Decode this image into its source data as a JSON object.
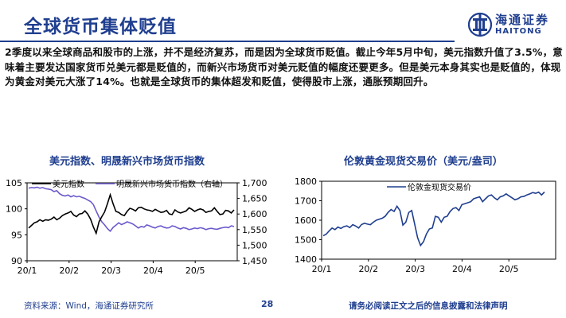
{
  "header": {
    "title": "全球货币集体贬值",
    "logo_cn": "海通证券",
    "logo_en": "HAITONG"
  },
  "body_text": "2季度以来全球商品和股市的上涨，并不是经济复苏，而是因为全球货币贬值。截止今年5月中旬，美元指数升值了3.5%，意味着主要发达国家货币兑美元都是贬值的，而新兴市场货币对美元贬值的幅度还要更多。但是美元本身其实也是贬值的，体现为黄金对美元大涨了14%。也就是全球货币的集体超发和贬值，使得股市上涨，通胀预期回升。",
  "colors": {
    "brand": "#1f3e8f",
    "series_black": "#000000",
    "series_purple": "#6a5acd",
    "series_navy": "#1f3e8f"
  },
  "chart_data": [
    {
      "type": "line",
      "title": "美元指数、明晟新兴市场货币指数",
      "x_ticks": [
        "20/1",
        "20/2",
        "20/3",
        "20/4",
        "20/5"
      ],
      "y_left_ticks": [
        "105",
        "100",
        "95",
        "90"
      ],
      "y_right_ticks": [
        "1,700",
        "1,650",
        "1,600",
        "1,550",
        "1,500",
        "1,450"
      ],
      "ylim_left": [
        90,
        105
      ],
      "ylim_right": [
        1450,
        1700
      ],
      "legend_position": "top",
      "series": [
        {
          "name": "美元指数",
          "axis": "left",
          "values": [
            96.3,
            96.8,
            97.3,
            97.5,
            97.9,
            97.6,
            97.9,
            97.8,
            98.0,
            98.4,
            97.9,
            98.2,
            98.7,
            99.0,
            99.2,
            99.5,
            98.8,
            98.5,
            99.0,
            99.1,
            99.6,
            99.0,
            98.0,
            96.5,
            95.3,
            97.5,
            98.5,
            99.4,
            101.0,
            102.7,
            101.0,
            99.5,
            99.3,
            98.9,
            98.7,
            99.5,
            100.1,
            99.9,
            99.6,
            100.2,
            100.3,
            100.0,
            99.8,
            99.7,
            99.5,
            99.9,
            99.6,
            99.3,
            99.4,
            99.7,
            99.0,
            98.9,
            99.8,
            99.4,
            99.2,
            99.4,
            99.6,
            100.2,
            99.9,
            99.5,
            99.8,
            100.0,
            99.8,
            99.3,
            99.5,
            99.6,
            100.2,
            99.5,
            98.9,
            99.0,
            99.7,
            99.6,
            99.2,
            99.8
          ]
        },
        {
          "name": "明晟新兴市场货币指数（右轴）",
          "axis": "right",
          "values": [
            1683,
            1685,
            1684,
            1686,
            1683,
            1685,
            1681,
            1680,
            1678,
            1672,
            1675,
            1665,
            1660,
            1658,
            1661,
            1655,
            1659,
            1655,
            1657,
            1653,
            1650,
            1645,
            1640,
            1630,
            1610,
            1590,
            1575,
            1565,
            1553,
            1545,
            1557,
            1564,
            1572,
            1566,
            1570,
            1575,
            1572,
            1568,
            1562,
            1555,
            1560,
            1558,
            1565,
            1562,
            1558,
            1555,
            1560,
            1562,
            1558,
            1555,
            1556,
            1562,
            1560,
            1555,
            1552,
            1556,
            1554,
            1550,
            1552,
            1555,
            1553,
            1556,
            1554,
            1550,
            1553,
            1554,
            1552,
            1551,
            1554,
            1556,
            1558,
            1556,
            1562,
            1560
          ]
        }
      ]
    },
    {
      "type": "line",
      "title": "伦敦黄金现货交易价（美元/盎司）",
      "x_ticks": [
        "20/1",
        "20/2",
        "20/3",
        "20/4",
        "20/5"
      ],
      "y_ticks": [
        "1800",
        "1700",
        "1600",
        "1500",
        "1400"
      ],
      "ylim": [
        1400,
        1800
      ],
      "legend_position": "top",
      "series": [
        {
          "name": "伦敦金现货交易价",
          "values": [
            1520,
            1528,
            1545,
            1560,
            1552,
            1565,
            1558,
            1567,
            1571,
            1562,
            1577,
            1570,
            1560,
            1578,
            1584,
            1580,
            1577,
            1590,
            1600,
            1605,
            1610,
            1620,
            1640,
            1655,
            1645,
            1672,
            1650,
            1575,
            1590,
            1640,
            1650,
            1580,
            1510,
            1470,
            1490,
            1530,
            1555,
            1560,
            1620,
            1615,
            1590,
            1615,
            1620,
            1645,
            1660,
            1665,
            1650,
            1680,
            1685,
            1690,
            1695,
            1710,
            1715,
            1720,
            1695,
            1710,
            1725,
            1730,
            1715,
            1705,
            1720,
            1725,
            1735,
            1725,
            1715,
            1705,
            1710,
            1720,
            1722,
            1730,
            1735,
            1742,
            1738,
            1744,
            1730,
            1745
          ]
        }
      ]
    }
  ],
  "footer": {
    "source": "资料来源：Wind，海通证券研究所",
    "page_number": "28",
    "disclaimer": "请务必阅读正文之后的信息披露和法律声明"
  }
}
